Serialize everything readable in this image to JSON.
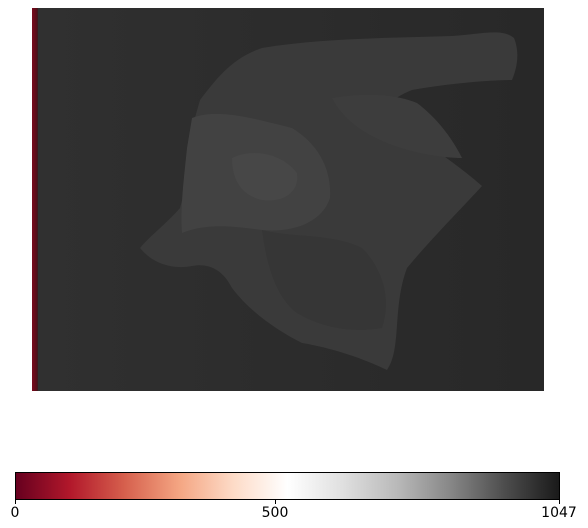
{
  "image": {
    "subject": "depth map",
    "background_color": "#2b2b2b",
    "edge_stripe_color": "#7a0a1d",
    "object_color": "#3f3f3f"
  },
  "colorbar": {
    "colormap": "RdGy",
    "min": 0,
    "max": 1047,
    "ticks": [
      {
        "value": 0,
        "label": "0"
      },
      {
        "value": 500,
        "label": "500"
      },
      {
        "value": 1047,
        "label": "1047"
      }
    ],
    "stops": [
      "#67001f",
      "#b2182b",
      "#d6604d",
      "#f4a582",
      "#fddbc7",
      "#ffffff",
      "#e0e0e0",
      "#bababa",
      "#878787",
      "#4d4d4d",
      "#1a1a1a"
    ]
  }
}
